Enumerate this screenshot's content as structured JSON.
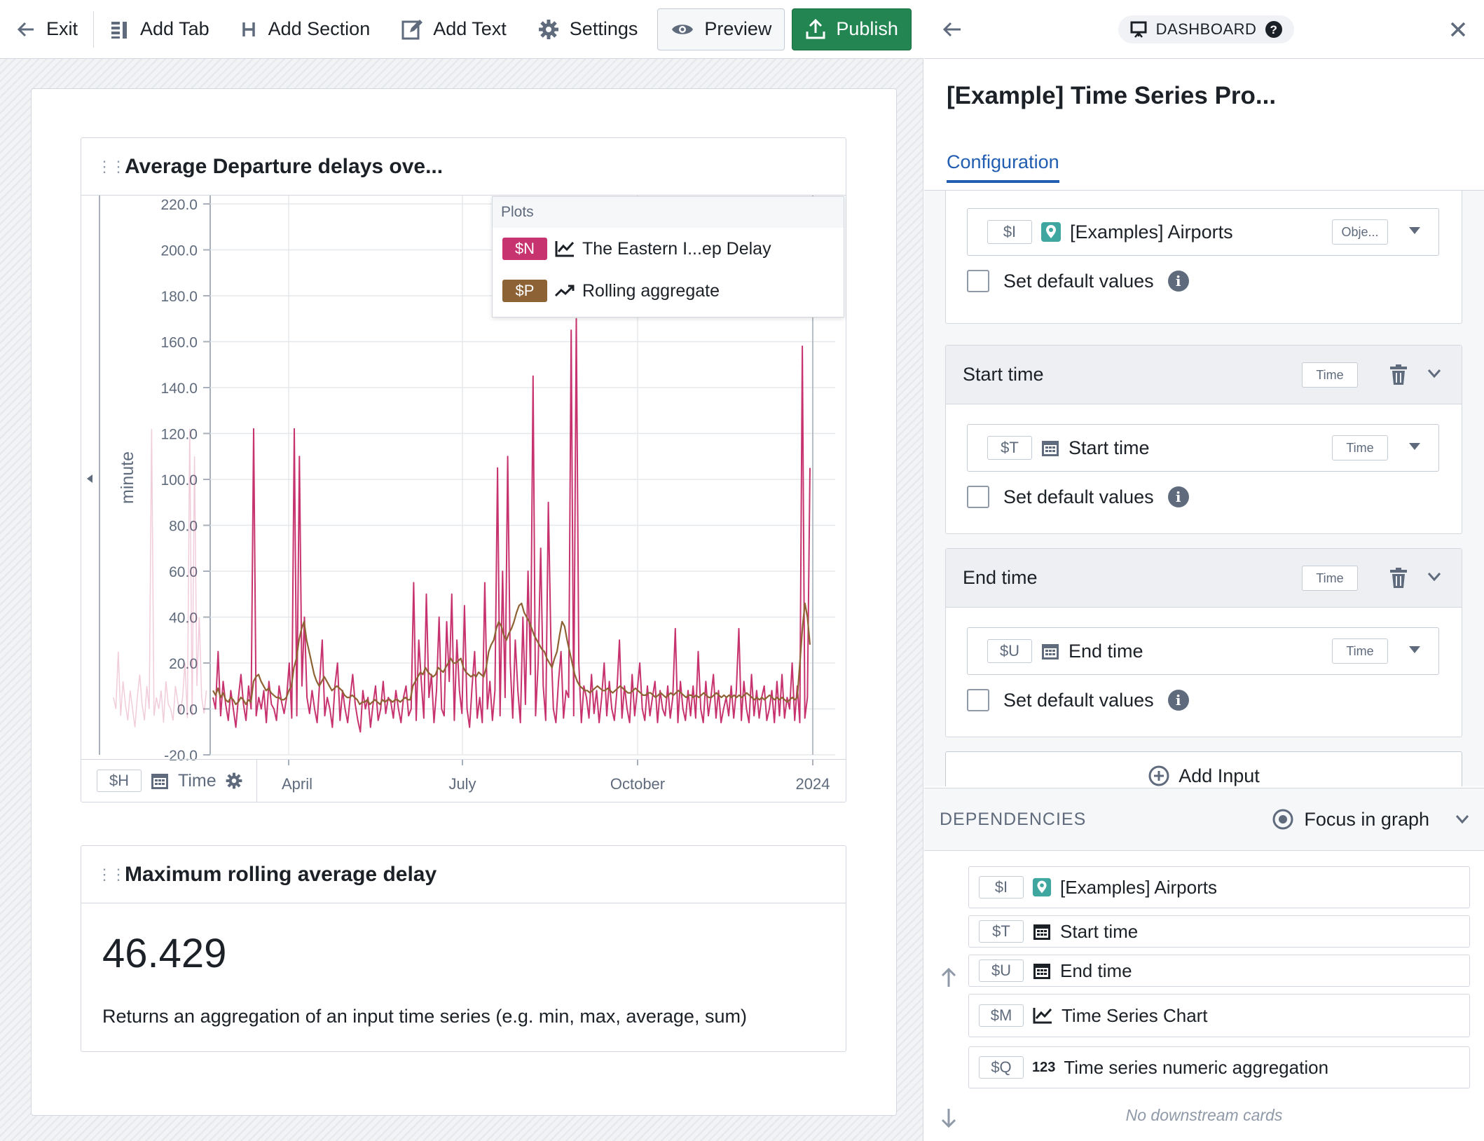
{
  "toolbar": {
    "exit": "Exit",
    "add_tab": "Add Tab",
    "add_section": "Add Section",
    "add_text": "Add Text",
    "settings": "Settings",
    "preview": "Preview",
    "publish": "Publish"
  },
  "chart_card": {
    "title": "Average Departure delays ove...",
    "legend_header": "Plots",
    "legend": [
      {
        "var": "$N",
        "icon": "line-chart-icon",
        "label": "The Eastern I...ep Delay",
        "color": "#c7336e"
      },
      {
        "var": "$P",
        "icon": "trend-icon",
        "label": "Rolling aggregate",
        "color": "#8d6234"
      }
    ],
    "x_var": "$H",
    "x_label": "Time"
  },
  "chart_data": {
    "type": "line",
    "ylabel": "minute",
    "ylim": [
      -20,
      220
    ],
    "yticks": [
      "220.0",
      "200.0",
      "180.0",
      "160.0",
      "140.0",
      "120.0",
      "100.0",
      "80.0",
      "60.0",
      "40.0",
      "20.0",
      "0.0",
      "-20.0"
    ],
    "xticks": [
      "April",
      "July",
      "October",
      "2024"
    ],
    "series": [
      {
        "name": "The Eastern I...ep Delay",
        "color": "#c7336e",
        "values": [
          5,
          0,
          25,
          -3,
          12,
          2,
          -5,
          8,
          0,
          -8,
          5,
          15,
          2,
          -5,
          10,
          0,
          122,
          -3,
          5,
          0,
          8,
          -6,
          12,
          2,
          0,
          -5,
          10,
          3,
          -2,
          5,
          20,
          -4,
          122,
          -3,
          110,
          10,
          40,
          5,
          -2,
          8,
          0,
          -6,
          12,
          30,
          -3,
          5,
          0,
          -8,
          10,
          20,
          -5,
          8,
          0,
          -6,
          5,
          15,
          2,
          -5,
          -10,
          8,
          0,
          5,
          -8,
          2,
          10,
          -5,
          0,
          12,
          -2,
          5,
          3,
          -4,
          8,
          0,
          -6,
          5,
          10,
          -3,
          0,
          55,
          -5,
          30,
          12,
          -4,
          50,
          5,
          15,
          -6,
          8,
          40,
          0,
          -3,
          38,
          12,
          50,
          -5,
          30,
          8,
          -2,
          45,
          0,
          -8,
          10,
          25,
          -4,
          5,
          -6,
          55,
          0,
          12,
          -5,
          8,
          105,
          -3,
          60,
          5,
          110,
          20,
          -4,
          30,
          8,
          -6,
          40,
          2,
          60,
          15,
          145,
          -3,
          20,
          70,
          10,
          -5,
          90,
          30,
          0,
          -6,
          12,
          25,
          -4,
          8,
          5,
          165,
          -3,
          170,
          20,
          -6,
          10,
          5,
          -4,
          15,
          -2,
          8,
          -6,
          5,
          20,
          -3,
          12,
          0,
          -5,
          8,
          30,
          -4,
          10,
          0,
          -6,
          15,
          -3,
          8,
          20,
          0,
          -5,
          10,
          -3,
          5,
          12,
          -6,
          8,
          0,
          -3,
          10,
          -4,
          5,
          35,
          -6,
          12,
          0,
          -5,
          8,
          -3,
          10,
          -4,
          25,
          0,
          -6,
          12,
          -3,
          5,
          15,
          -4,
          8,
          -6,
          0,
          5,
          -3,
          10,
          -4,
          8,
          35,
          -5,
          12,
          0,
          -6,
          15,
          -3,
          8,
          -4,
          5,
          10,
          -5,
          0,
          8,
          -6,
          12,
          -3,
          15,
          -4,
          5,
          0,
          20,
          -5,
          10,
          -6,
          158,
          -4,
          5,
          105
        ]
      },
      {
        "name": "Rolling aggregate",
        "color": "#8d6234",
        "values": [
          8,
          6,
          9,
          5,
          7,
          4,
          3,
          5,
          4,
          2,
          3,
          5,
          4,
          2,
          4,
          3,
          12,
          14,
          15,
          12,
          10,
          8,
          9,
          7,
          6,
          5,
          5,
          4,
          4,
          5,
          8,
          10,
          18,
          22,
          30,
          35,
          38,
          30,
          25,
          20,
          15,
          12,
          10,
          12,
          14,
          12,
          10,
          8,
          9,
          10,
          9,
          8,
          6,
          5,
          5,
          6,
          5,
          4,
          2,
          3,
          3,
          4,
          2,
          3,
          4,
          3,
          2,
          4,
          3,
          4,
          4,
          3,
          4,
          4,
          3,
          4,
          5,
          4,
          4,
          10,
          12,
          14,
          16,
          15,
          18,
          16,
          15,
          14,
          15,
          18,
          17,
          16,
          18,
          20,
          22,
          20,
          20,
          21,
          22,
          18,
          16,
          15,
          14,
          15,
          14,
          16,
          15,
          14,
          18,
          25,
          28,
          30,
          35,
          38,
          36,
          32,
          30,
          33,
          35,
          38,
          42,
          45,
          46,
          42,
          40,
          38,
          35,
          32,
          30,
          28,
          26,
          25,
          22,
          20,
          18,
          22,
          25,
          32,
          38,
          36,
          30,
          25,
          20,
          15,
          12,
          10,
          9,
          8,
          8,
          7,
          8,
          9,
          10,
          9,
          8,
          8,
          9,
          8,
          7,
          8,
          9,
          10,
          9,
          8,
          7,
          7,
          8,
          9,
          8,
          7,
          6,
          6,
          7,
          7,
          6,
          5,
          6,
          7,
          6,
          5,
          6,
          7,
          6,
          7,
          8,
          7,
          6,
          5,
          6,
          6,
          5,
          6,
          5,
          6,
          7,
          6,
          5,
          5,
          6,
          7,
          6,
          5,
          6,
          5,
          6,
          5,
          6,
          5,
          6,
          5,
          6,
          7,
          6,
          5,
          4,
          5,
          4,
          5,
          4,
          5,
          6,
          5,
          4,
          5,
          4,
          5,
          4,
          3,
          4,
          5,
          4,
          5,
          20,
          35,
          46,
          40,
          28
        ]
      }
    ]
  },
  "metric_card": {
    "title": "Maximum rolling average delay",
    "value": "46.429",
    "description": "Returns an aggregation of an input time series (e.g. min, max, average, sum)"
  },
  "panel": {
    "badge": "DASHBOARD",
    "title": "[Example] Time Series Pro...",
    "tab": "Configuration",
    "object_input": {
      "var": "$I",
      "label": "[Examples] Airports",
      "type": "Obje..."
    },
    "set_default": "Set default values",
    "start": {
      "header": "Start time",
      "type": "Time",
      "var": "$T",
      "label": "Start time"
    },
    "end": {
      "header": "End time",
      "type": "Time",
      "var": "$U",
      "label": "End time"
    },
    "add_input": "Add Input",
    "deps_title": "DEPENDENCIES",
    "focus": "Focus in graph",
    "deps": [
      {
        "var": "$I",
        "icon": "map-pin-icon",
        "label": "[Examples] Airports"
      },
      {
        "var": "$T",
        "icon": "calendar-icon",
        "label": "Start time"
      },
      {
        "var": "$U",
        "icon": "calendar-icon",
        "label": "End time"
      },
      {
        "var": "$M",
        "icon": "line-chart-icon",
        "label": "Time Series Chart"
      },
      {
        "var": "$Q",
        "icon": "numeric-icon",
        "label": "Time series numeric aggregation"
      }
    ],
    "no_downstream": "No downstream cards"
  }
}
